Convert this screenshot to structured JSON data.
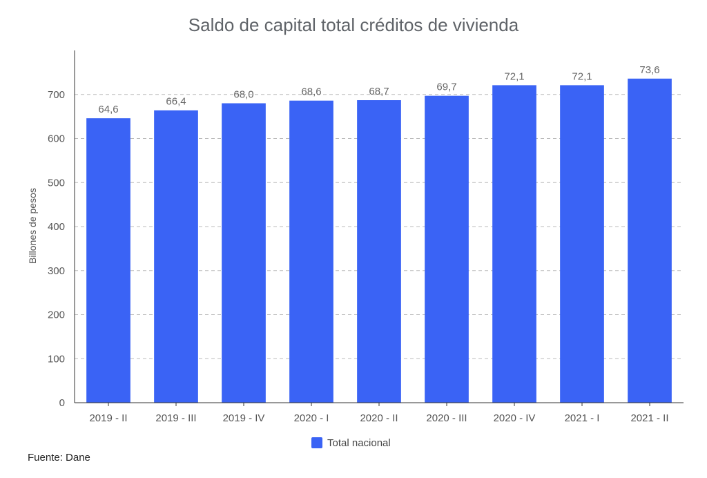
{
  "chart_data": {
    "type": "bar",
    "title": "Saldo de capital total créditos de vivienda",
    "ylabel": "Billones de pesos",
    "xlabel": "",
    "categories": [
      "2019 - II",
      "2019 - III",
      "2019 - IV",
      "2020 - I",
      "2020 - II",
      "2020 - III",
      "2020 - IV",
      "2021 - I",
      "2021 - II"
    ],
    "series": [
      {
        "name": "Total nacional",
        "values": [
          646,
          664,
          680,
          686,
          687,
          697,
          721,
          721,
          736
        ],
        "labels": [
          "64,6",
          "66,4",
          "68,0",
          "68,6",
          "68,7",
          "69,7",
          "72,1",
          "72,1",
          "73,6"
        ],
        "color": "#3a63f5"
      }
    ],
    "ylim": [
      0,
      800
    ],
    "yticks": [
      0,
      100,
      200,
      300,
      400,
      500,
      600,
      700
    ],
    "grid": true,
    "legend_position": "bottom-center"
  },
  "footer": {
    "source": "Fuente: Dane"
  },
  "colors": {
    "bar": "#3a63f5",
    "grid": "#bbbbbb",
    "axis": "#333333"
  }
}
